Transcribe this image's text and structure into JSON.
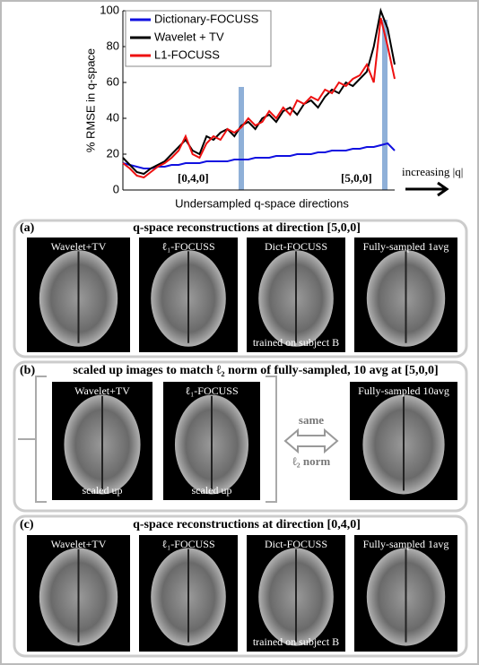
{
  "chart_data": {
    "type": "line",
    "y_label": "% RMSE in q-space",
    "x_label": "Undersampled q-space directions",
    "ylim": [
      0,
      100
    ],
    "yticks": [
      0,
      20,
      40,
      60,
      80,
      100
    ],
    "legend": "upper left",
    "series": [
      {
        "name": "Dictionary-FOCUSS",
        "color": "#1010e0",
        "values": [
          15,
          14,
          13,
          12,
          12,
          13,
          13,
          14,
          14,
          15,
          15,
          15,
          16,
          16,
          16,
          16,
          17,
          17,
          17,
          18,
          18,
          18,
          19,
          19,
          19,
          20,
          20,
          20,
          21,
          21,
          22,
          22,
          22,
          23,
          23,
          24,
          24,
          25,
          26,
          22
        ]
      },
      {
        "name": "Wavelet + TV",
        "color": "#000000",
        "values": [
          18,
          14,
          10,
          9,
          12,
          14,
          16,
          20,
          24,
          28,
          22,
          20,
          30,
          28,
          32,
          34,
          30,
          36,
          38,
          34,
          40,
          42,
          38,
          44,
          46,
          42,
          48,
          50,
          46,
          52,
          56,
          54,
          60,
          58,
          62,
          66,
          80,
          100,
          90,
          70
        ]
      },
      {
        "name": "L1-FOCUSS",
        "color": "#ee1010",
        "values": [
          15,
          12,
          8,
          7,
          10,
          13,
          15,
          18,
          22,
          30,
          20,
          18,
          26,
          30,
          28,
          34,
          32,
          35,
          40,
          36,
          38,
          44,
          40,
          46,
          42,
          50,
          48,
          52,
          50,
          56,
          54,
          60,
          58,
          62,
          64,
          70,
          60,
          96,
          80,
          62
        ]
      }
    ],
    "annotations": [
      "[0,4,0]",
      "[5,0,0]",
      "increasing |q|"
    ]
  },
  "panels": [
    {
      "label": "(a)",
      "title": "q-space reconstructions at direction [5,0,0]",
      "images": [
        {
          "caption": "Wavelet+TV"
        },
        {
          "caption": "ℓ₁-FOCUSS"
        },
        {
          "caption": "Dict-FOCUSS",
          "note": "trained on subject B"
        },
        {
          "caption": "Fully-sampled  1avg"
        }
      ]
    },
    {
      "label": "(b)",
      "title": "scaled up images to match ℓ₂ norm of fully-sampled, 10 avg at [5,0,0]",
      "images": [
        {
          "caption": "Wavelet+TV",
          "note": "scaled up"
        },
        {
          "caption": "ℓ₁-FOCUSS",
          "note": "scaled up"
        },
        {
          "caption": "Fully-sampled  10avg"
        }
      ],
      "side_text": [
        "same",
        "ℓ₂ norm"
      ]
    },
    {
      "label": "(c)",
      "title": "q-space reconstructions at direction [0,4,0]",
      "images": [
        {
          "caption": "Wavelet+TV"
        },
        {
          "caption": "ℓ₁-FOCUSS"
        },
        {
          "caption": "Dict-FOCUSS",
          "note": "trained on subject B"
        },
        {
          "caption": "Fully-sampled  1avg"
        }
      ]
    }
  ]
}
